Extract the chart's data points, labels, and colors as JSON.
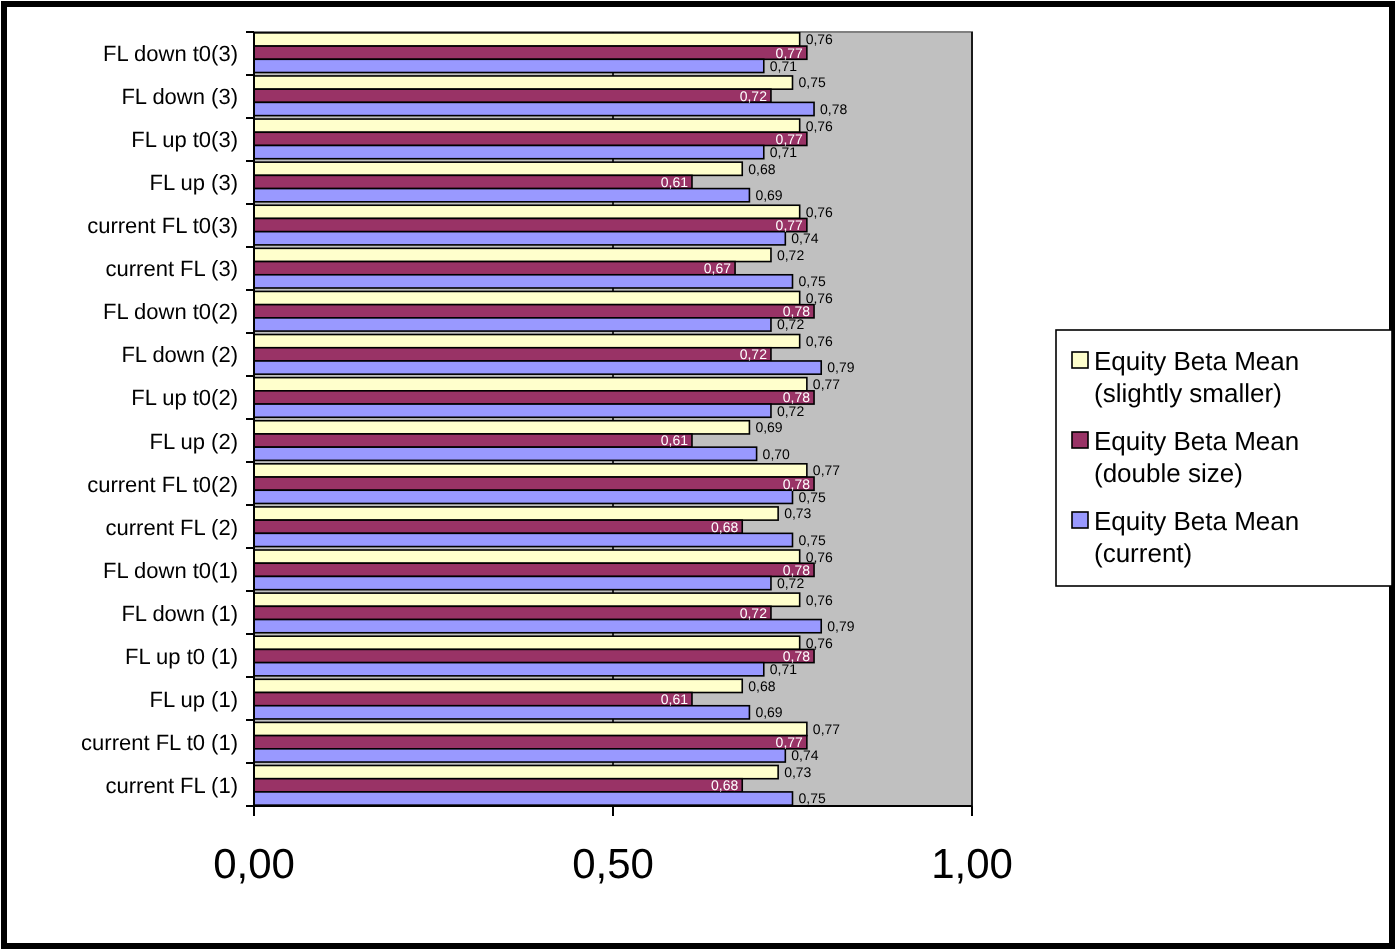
{
  "chart_data": {
    "type": "bar",
    "orientation": "horizontal",
    "categories": [
      "FL down t0(3)",
      "FL down (3)",
      "FL up t0(3)",
      "FL up (3)",
      "current FL t0(3)",
      "current FL (3)",
      "FL down t0(2)",
      "FL down (2)",
      "FL up t0(2)",
      "FL up (2)",
      "current FL t0(2)",
      "current FL (2)",
      "FL down t0(1)",
      "FL down (1)",
      "FL up t0 (1)",
      "FL up (1)",
      "current FL t0 (1)",
      "current FL (1)"
    ],
    "series": [
      {
        "name": "Equity Beta Mean (slightly smaller)",
        "color": "#ffffcc",
        "values": [
          0.76,
          0.75,
          0.76,
          0.68,
          0.76,
          0.72,
          0.76,
          0.76,
          0.77,
          0.69,
          0.77,
          0.73,
          0.76,
          0.76,
          0.76,
          0.68,
          0.77,
          0.73
        ],
        "value_labels": [
          "0,76",
          "0,75",
          "0,76",
          "0,68",
          "0,76",
          "0,72",
          "0,76",
          "0,76",
          "0,77",
          "0,69",
          "0,77",
          "0,73",
          "0,76",
          "0,76",
          "0,76",
          "0,68",
          "0,77",
          "0,73"
        ]
      },
      {
        "name": "Equity Beta Mean (double size)",
        "color": "#993366",
        "values": [
          0.77,
          0.72,
          0.77,
          0.61,
          0.77,
          0.67,
          0.78,
          0.72,
          0.78,
          0.61,
          0.78,
          0.68,
          0.78,
          0.72,
          0.78,
          0.61,
          0.77,
          0.68
        ],
        "value_labels": [
          "0,77",
          "0,72",
          "0,77",
          "0,61",
          "0,77",
          "0,67",
          "0,78",
          "0,72",
          "0,78",
          "0,61",
          "0,78",
          "0,68",
          "0,78",
          "0,72",
          "0,78",
          "0,61",
          "0,77",
          "0,68"
        ]
      },
      {
        "name": "Equity Beta Mean (current)",
        "color": "#9999ff",
        "values": [
          0.71,
          0.78,
          0.71,
          0.69,
          0.74,
          0.75,
          0.72,
          0.79,
          0.72,
          0.7,
          0.75,
          0.75,
          0.72,
          0.79,
          0.71,
          0.69,
          0.74,
          0.75
        ],
        "value_labels": [
          "0,71",
          "0,78",
          "0,71",
          "0,69",
          "0,74",
          "0,75",
          "0,72",
          "0,79",
          "0,72",
          "0,70",
          "0,75",
          "0,75",
          "0,72",
          "0,79",
          "0,71",
          "0,69",
          "0,74",
          "0,75"
        ]
      }
    ],
    "xlim": [
      0,
      1
    ],
    "xticks": [
      {
        "value": 0,
        "label": "0,00"
      },
      {
        "value": 0.5,
        "label": "0,50"
      },
      {
        "value": 1,
        "label": "1,00"
      }
    ],
    "grid": "x",
    "legend": "right"
  }
}
